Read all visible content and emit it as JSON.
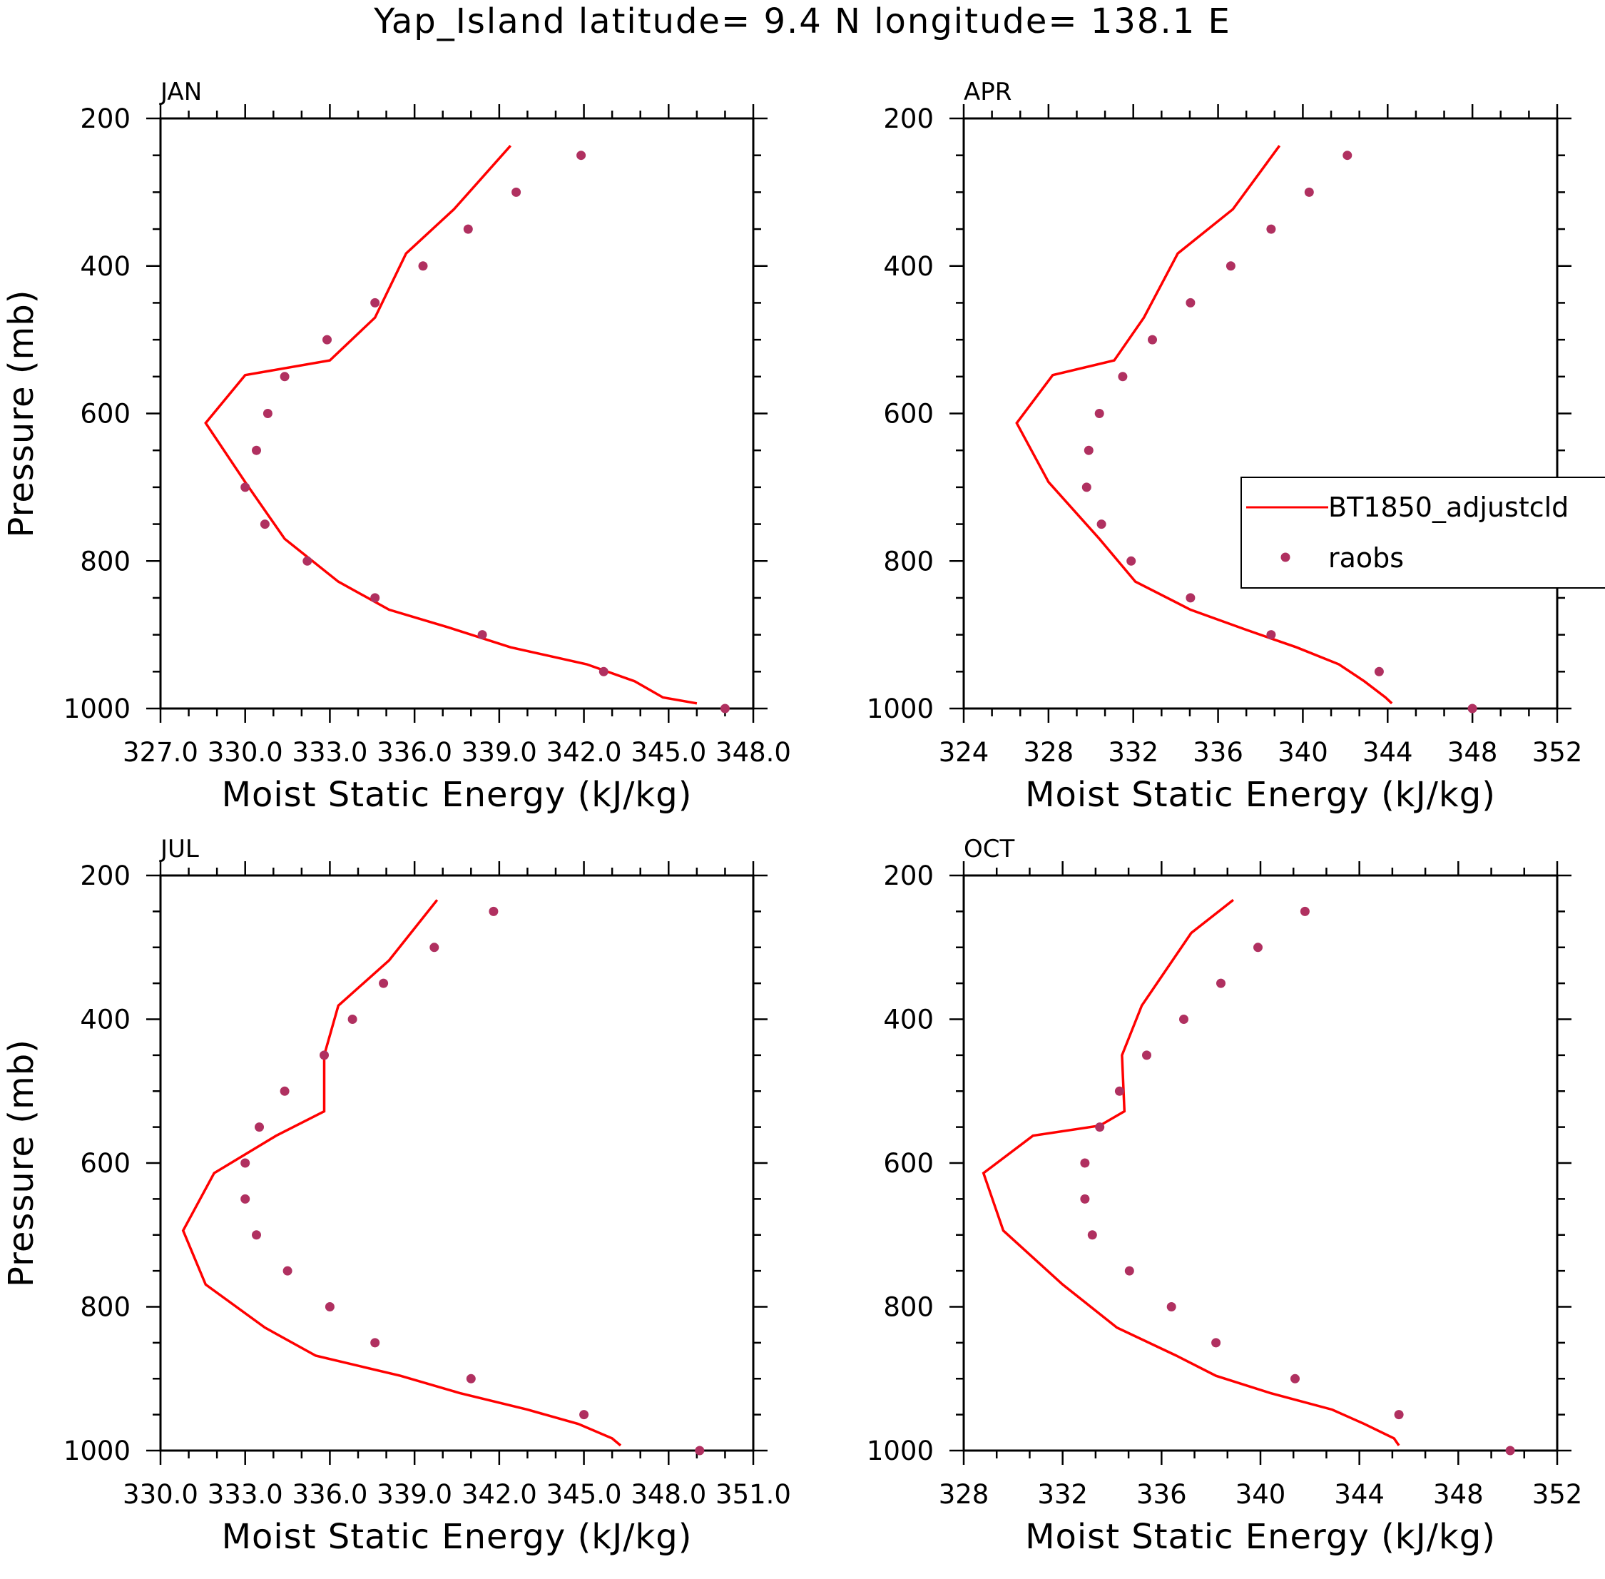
{
  "title": "Yap_Island  latitude= 9.4 N longitude= 138.1 E",
  "legend": {
    "model_label": "BT1850_adjustcld",
    "obs_label": "raobs"
  },
  "colors": {
    "model_line": "#ff0000",
    "obs_marker": "#b03060",
    "axes": "#000000"
  },
  "chart_data": [
    {
      "type": "line",
      "month": "JAN",
      "xlabel": "Moist Static Energy (kJ/kg)",
      "ylabel": "Pressure (mb)",
      "xlim": [
        327.0,
        348.0
      ],
      "ylim": [
        1000,
        200
      ],
      "xticks": [
        327.0,
        330.0,
        333.0,
        336.0,
        339.0,
        342.0,
        345.0,
        348.0
      ],
      "xtick_labels": [
        "327.0",
        "330.0",
        "333.0",
        "336.0",
        "339.0",
        "342.0",
        "345.0",
        "348.0"
      ],
      "yticks": [
        200,
        400,
        600,
        800,
        1000
      ],
      "ytick_labels": [
        "200",
        "400",
        "600",
        "800",
        "1000"
      ],
      "series": [
        {
          "name": "BT1850_adjustcld",
          "style": "line",
          "x": [
            346.0,
            344.8,
            343.8,
            342.1,
            339.4,
            337.2,
            335.1,
            333.3,
            331.4,
            330.0,
            328.6,
            330.0,
            333.0,
            334.6,
            335.7,
            337.4,
            339.4
          ],
          "y": [
            993,
            985,
            963,
            940,
            917,
            890,
            866,
            828,
            770,
            693,
            613,
            548,
            528,
            470,
            383,
            323,
            237
          ]
        },
        {
          "name": "raobs",
          "style": "marker",
          "x": [
            347.0,
            342.7,
            338.4,
            334.6,
            332.2,
            330.7,
            330.0,
            330.4,
            330.8,
            331.4,
            332.9,
            334.6,
            336.3,
            337.9,
            339.6,
            341.9
          ],
          "y": [
            1000,
            950,
            900,
            850,
            800,
            750,
            700,
            650,
            600,
            550,
            500,
            450,
            400,
            350,
            300,
            250
          ]
        }
      ]
    },
    {
      "type": "line",
      "month": "APR",
      "xlabel": "Moist Static Energy (kJ/kg)",
      "ylabel": "",
      "xlim": [
        324,
        352
      ],
      "ylim": [
        1000,
        200
      ],
      "xticks": [
        324,
        328,
        332,
        336,
        340,
        344,
        348,
        352
      ],
      "xtick_labels": [
        "324",
        "328",
        "332",
        "336",
        "340",
        "344",
        "348",
        "352"
      ],
      "yticks": [
        200,
        400,
        600,
        800,
        1000
      ],
      "ytick_labels": [
        "200",
        "400",
        "600",
        "800",
        "1000"
      ],
      "series": [
        {
          "name": "BT1850_adjustcld",
          "style": "line",
          "x": [
            344.2,
            343.9,
            342.9,
            341.7,
            339.7,
            337.3,
            334.7,
            332.1,
            330.4,
            328.0,
            326.5,
            328.2,
            331.1,
            332.5,
            334.1,
            336.7,
            338.9
          ],
          "y": [
            993,
            985,
            963,
            940,
            917,
            893,
            866,
            828,
            770,
            693,
            613,
            548,
            528,
            470,
            383,
            323,
            237
          ]
        },
        {
          "name": "raobs",
          "style": "marker",
          "x": [
            348.0,
            343.6,
            338.5,
            334.7,
            331.9,
            330.5,
            329.8,
            329.9,
            330.4,
            331.5,
            332.9,
            334.7,
            336.6,
            338.5,
            340.3,
            342.1
          ],
          "y": [
            1000,
            950,
            900,
            850,
            800,
            750,
            700,
            650,
            600,
            550,
            500,
            450,
            400,
            350,
            300,
            250
          ]
        }
      ]
    },
    {
      "type": "line",
      "month": "JUL",
      "xlabel": "Moist Static Energy (kJ/kg)",
      "ylabel": "Pressure (mb)",
      "xlim": [
        330.0,
        351.0
      ],
      "ylim": [
        1000,
        200
      ],
      "xticks": [
        330.0,
        333.0,
        336.0,
        339.0,
        342.0,
        345.0,
        348.0,
        351.0
      ],
      "xtick_labels": [
        "330.0",
        "333.0",
        "336.0",
        "339.0",
        "342.0",
        "345.0",
        "348.0",
        "351.0"
      ],
      "yticks": [
        200,
        400,
        600,
        800,
        1000
      ],
      "ytick_labels": [
        "200",
        "400",
        "600",
        "800",
        "1000"
      ],
      "series": [
        {
          "name": "BT1850_adjustcld",
          "style": "line",
          "x": [
            346.3,
            346.0,
            344.8,
            343.0,
            340.6,
            338.5,
            335.5,
            333.7,
            331.6,
            330.8,
            331.9,
            334.1,
            335.8,
            335.8,
            336.3,
            338.1,
            339.8
          ],
          "y": [
            993,
            983,
            963,
            943,
            920,
            896,
            868,
            829,
            769,
            694,
            614,
            562,
            528,
            450,
            381,
            318,
            234
          ]
        },
        {
          "name": "raobs",
          "style": "marker",
          "x": [
            349.1,
            345.0,
            341.0,
            337.6,
            336.0,
            334.5,
            333.4,
            333.0,
            333.0,
            333.5,
            334.4,
            335.8,
            336.8,
            337.9,
            339.7,
            341.8
          ],
          "y": [
            1000,
            950,
            900,
            850,
            800,
            750,
            700,
            650,
            600,
            550,
            500,
            450,
            400,
            350,
            300,
            250
          ]
        }
      ]
    },
    {
      "type": "line",
      "month": "OCT",
      "xlabel": "Moist Static Energy (kJ/kg)",
      "ylabel": "",
      "xlim": [
        328,
        352
      ],
      "ylim": [
        1000,
        200
      ],
      "xticks": [
        328,
        332,
        336,
        340,
        344,
        348,
        352
      ],
      "xtick_labels": [
        "328",
        "332",
        "336",
        "340",
        "344",
        "348",
        "352"
      ],
      "yticks": [
        200,
        400,
        600,
        800,
        1000
      ],
      "ytick_labels": [
        "200",
        "400",
        "600",
        "800",
        "1000"
      ],
      "series": [
        {
          "name": "BT1850_adjustcld",
          "style": "line",
          "x": [
            345.6,
            345.4,
            344.2,
            342.9,
            340.4,
            338.2,
            336.6,
            334.2,
            332.0,
            329.6,
            328.8,
            330.8,
            333.5,
            334.5,
            334.4,
            335.2,
            337.2,
            338.9
          ],
          "y": [
            993,
            983,
            963,
            943,
            920,
            896,
            868,
            829,
            769,
            694,
            614,
            562,
            548,
            528,
            450,
            381,
            280,
            234
          ]
        },
        {
          "name": "raobs",
          "style": "marker",
          "x": [
            350.1,
            345.6,
            341.4,
            338.2,
            336.4,
            334.7,
            333.2,
            332.9,
            332.9,
            333.5,
            334.3,
            335.4,
            336.9,
            338.4,
            339.9,
            341.8
          ],
          "y": [
            1000,
            950,
            900,
            850,
            800,
            750,
            700,
            650,
            600,
            550,
            500,
            450,
            400,
            350,
            300,
            250
          ]
        }
      ]
    }
  ]
}
